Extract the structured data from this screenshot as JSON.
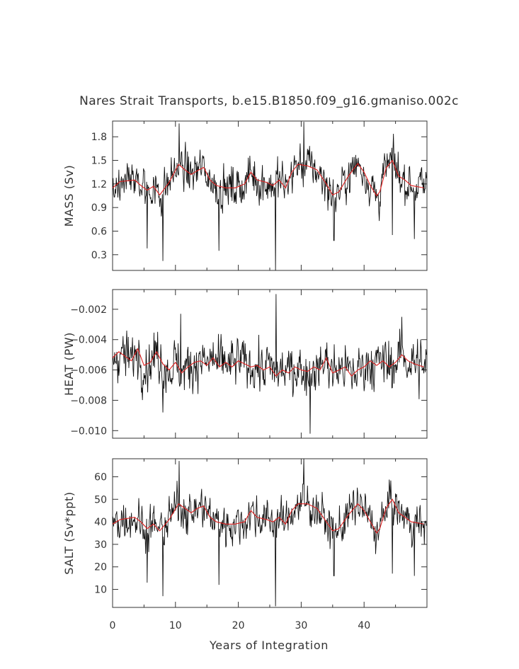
{
  "chart_data": {
    "title": "Nares Strait Transports, b.e15.B1850.f09_g16.gmaniso.002c",
    "xlabel": "Years of Integration",
    "xlim": [
      0,
      50
    ],
    "x_ticks": [
      0,
      10,
      20,
      30,
      40
    ],
    "x_tick_labels": [
      "0",
      "10",
      "20",
      "30",
      "40"
    ],
    "colors": {
      "monthly": "#111111",
      "running_mean": "#e02020",
      "axes": "#333333"
    },
    "panels": [
      {
        "type": "line",
        "ylabel": "MASS (Sv)",
        "ylim": [
          0.1,
          2.0
        ],
        "y_ticks": [
          0.3,
          0.6,
          0.9,
          1.2,
          1.5,
          1.8
        ],
        "y_tick_labels": [
          "0.3",
          "0.6",
          "0.9",
          "1.2",
          "1.5",
          "1.8"
        ],
        "baseline": 1.25,
        "amplitude": 0.18,
        "spikes": [
          [
            5.5,
            0.38
          ],
          [
            8.0,
            0.22
          ],
          [
            10.6,
            1.97
          ],
          [
            16.9,
            0.35
          ],
          [
            25.9,
            0.1
          ],
          [
            30.4,
            1.99
          ],
          [
            35.2,
            0.48
          ],
          [
            44.5,
            0.55
          ],
          [
            48.0,
            0.5
          ]
        ],
        "running_mean": {
          "x": [
            0,
            1.2,
            3.5,
            4.5,
            5.5,
            6.5,
            7.5,
            9,
            10.5,
            11.5,
            12.5,
            13.5,
            14.5,
            15.5,
            16.5,
            18,
            19.5,
            21,
            22,
            23,
            24.5,
            25.5,
            26.5,
            27.5,
            28.5,
            29.5,
            31,
            32.5,
            34,
            35,
            36,
            37.5,
            39,
            40,
            41,
            42,
            42.5,
            43.5,
            44.5,
            45.5,
            46.5,
            47.5,
            49.5
          ],
          "y": [
            1.15,
            1.23,
            1.25,
            1.18,
            1.12,
            1.17,
            1.06,
            1.22,
            1.45,
            1.38,
            1.32,
            1.37,
            1.41,
            1.25,
            1.18,
            1.15,
            1.15,
            1.2,
            1.35,
            1.25,
            1.22,
            1.18,
            1.25,
            1.15,
            1.35,
            1.45,
            1.43,
            1.38,
            1.2,
            1.06,
            1.1,
            1.3,
            1.46,
            1.35,
            1.18,
            1.05,
            1.1,
            1.4,
            1.5,
            1.3,
            1.25,
            1.18,
            1.15
          ]
        }
      },
      {
        "type": "line",
        "ylabel": "HEAT (PW)",
        "ylim": [
          -0.0105,
          -0.0007
        ],
        "y_ticks": [
          -0.01,
          -0.008,
          -0.006,
          -0.004,
          -0.002
        ],
        "y_tick_labels": [
          "−0.010",
          "−0.008",
          "−0.006",
          "−0.004",
          "−0.002"
        ],
        "baseline": -0.0056,
        "amplitude": 0.0011,
        "spikes": [
          [
            10.8,
            -0.0023
          ],
          [
            26.0,
            -0.001
          ],
          [
            31.4,
            -0.0102
          ],
          [
            46.0,
            -0.0025
          ],
          [
            8.0,
            -0.0088
          ]
        ],
        "running_mean": {
          "x": [
            0,
            1,
            2,
            3,
            4,
            5,
            6,
            7,
            8,
            9,
            10,
            11,
            12,
            13,
            14,
            15,
            16,
            17,
            18,
            19,
            20,
            21,
            22,
            23,
            24,
            25,
            26,
            27,
            28,
            29,
            30,
            31,
            32,
            33,
            34,
            35,
            36,
            37,
            38,
            39,
            40,
            41,
            42,
            43,
            44,
            45,
            46,
            47,
            48,
            49.5
          ],
          "y": [
            -0.0052,
            -0.0048,
            -0.0051,
            -0.0054,
            -0.0046,
            -0.0057,
            -0.0055,
            -0.0048,
            -0.0056,
            -0.006,
            -0.0055,
            -0.0062,
            -0.0058,
            -0.0055,
            -0.0054,
            -0.0057,
            -0.0052,
            -0.0058,
            -0.0055,
            -0.0058,
            -0.0054,
            -0.0056,
            -0.0058,
            -0.0057,
            -0.006,
            -0.0058,
            -0.0064,
            -0.006,
            -0.0062,
            -0.0058,
            -0.006,
            -0.0061,
            -0.0058,
            -0.006,
            -0.0052,
            -0.0062,
            -0.006,
            -0.0058,
            -0.0064,
            -0.006,
            -0.0058,
            -0.0054,
            -0.0057,
            -0.0054,
            -0.0058,
            -0.0055,
            -0.005,
            -0.0054,
            -0.0056,
            -0.0058
          ]
        }
      },
      {
        "type": "line",
        "ylabel": "SALT (Sv*ppt)",
        "ylim": [
          2,
          68
        ],
        "y_ticks": [
          10,
          20,
          30,
          40,
          50,
          60
        ],
        "y_tick_labels": [
          "10",
          "20",
          "30",
          "40",
          "50",
          "60"
        ],
        "baseline": 42,
        "amplitude": 6,
        "spikes": [
          [
            5.5,
            13
          ],
          [
            8.0,
            7
          ],
          [
            10.6,
            67
          ],
          [
            16.9,
            12
          ],
          [
            25.9,
            2.5
          ],
          [
            30.4,
            68
          ],
          [
            35.2,
            16
          ],
          [
            44.5,
            17
          ],
          [
            48.0,
            16
          ]
        ],
        "running_mean": {
          "x": [
            0,
            1.2,
            3.5,
            4.5,
            5.5,
            6.5,
            7.5,
            9,
            10.5,
            11.5,
            12.5,
            13.5,
            14.5,
            15.5,
            16.5,
            18,
            19.5,
            21,
            22,
            23,
            24.5,
            25.5,
            26.5,
            27.5,
            28.5,
            29.5,
            31,
            32.5,
            34,
            35,
            36,
            37.5,
            39,
            40,
            41,
            42,
            42.5,
            43.5,
            44.5,
            45.5,
            46.5,
            47.5,
            49.5
          ],
          "y": [
            39,
            41,
            42,
            40,
            37,
            39,
            36,
            41,
            48,
            46,
            44,
            46,
            47,
            42,
            40,
            39,
            39,
            40,
            45,
            42,
            41,
            40,
            42,
            39,
            45,
            48,
            48,
            46,
            40,
            36,
            37,
            43,
            48,
            45,
            40,
            35,
            37,
            46,
            50,
            44,
            42,
            40,
            39
          ]
        }
      }
    ]
  }
}
